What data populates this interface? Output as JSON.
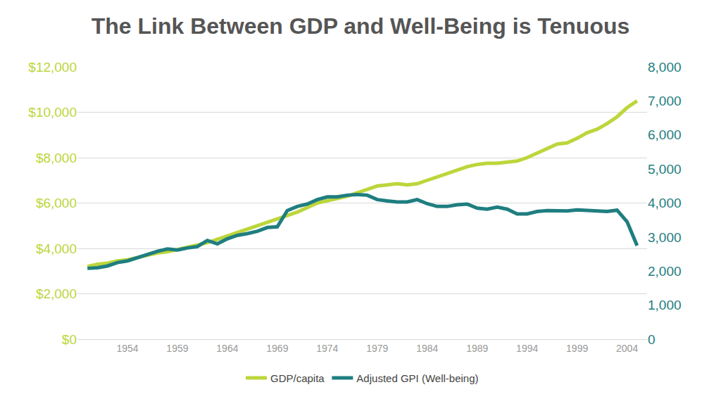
{
  "chart_data": {
    "type": "line",
    "title": "The Link Between GDP and Well-Being is Tenuous",
    "x": [
      1950,
      1951,
      1952,
      1953,
      1954,
      1955,
      1956,
      1957,
      1958,
      1959,
      1960,
      1961,
      1962,
      1963,
      1964,
      1965,
      1966,
      1967,
      1968,
      1969,
      1970,
      1971,
      1972,
      1973,
      1974,
      1975,
      1976,
      1977,
      1978,
      1979,
      1980,
      1981,
      1982,
      1983,
      1984,
      1985,
      1986,
      1987,
      1988,
      1989,
      1990,
      1991,
      1992,
      1993,
      1994,
      1995,
      1996,
      1997,
      1998,
      1999,
      2000,
      2001,
      2002,
      2003,
      2004,
      2005
    ],
    "series": [
      {
        "name": "GDP/capita",
        "color": "#bcd63b",
        "values": [
          3200,
          3300,
          3350,
          3450,
          3500,
          3600,
          3700,
          3800,
          3850,
          3950,
          4050,
          4150,
          4250,
          4400,
          4550,
          4700,
          4850,
          5000,
          5150,
          5300,
          5450,
          5600,
          5800,
          6000,
          6100,
          6200,
          6300,
          6450,
          6600,
          6750,
          6800,
          6850,
          6800,
          6850,
          7000,
          7150,
          7300,
          7450,
          7600,
          7700,
          7750,
          7750,
          7800,
          7850,
          8000,
          8200,
          8400,
          8600,
          8650,
          8850,
          9100,
          9250,
          9500,
          9800,
          10200,
          10500
        ]
      },
      {
        "name": "Adjusted GPI (Well-being)",
        "color": "#1f7e80",
        "axis": "y2",
        "values": [
          2080,
          2100,
          2150,
          2250,
          2300,
          2400,
          2500,
          2580,
          2650,
          2620,
          2680,
          2720,
          2900,
          2800,
          2950,
          3050,
          3100,
          3170,
          3280,
          3300,
          3780,
          3900,
          3970,
          4100,
          4180,
          4180,
          4230,
          4250,
          4230,
          4100,
          4060,
          4030,
          4030,
          4100,
          3980,
          3900,
          3900,
          3950,
          3970,
          3850,
          3820,
          3880,
          3820,
          3680,
          3680,
          3750,
          3780,
          3770,
          3770,
          3800,
          3780,
          3760,
          3750,
          3790,
          3450,
          2750
        ]
      }
    ],
    "xlim": [
      1949,
      2006
    ],
    "xticks": [
      1954,
      1959,
      1964,
      1969,
      1974,
      1979,
      1984,
      1989,
      1994,
      1999,
      2004
    ],
    "ylim": [
      0,
      12000
    ],
    "yticks": [
      {
        "value": 0,
        "label": "$0"
      },
      {
        "value": 2000,
        "label": "$2,000"
      },
      {
        "value": 4000,
        "label": "$4,000"
      },
      {
        "value": 6000,
        "label": "$6,000"
      },
      {
        "value": 8000,
        "label": "$8,000"
      },
      {
        "value": 10000,
        "label": "$10,000"
      },
      {
        "value": 12000,
        "label": "$12,000"
      }
    ],
    "y2lim": [
      0,
      8000
    ],
    "y2ticks": [
      0,
      {
        "value": 1000,
        "label": "1,000"
      },
      {
        "value": 2000,
        "label": "2,000"
      },
      {
        "value": 3000,
        "label": "3,000"
      },
      {
        "value": 4000,
        "label": "4,000"
      },
      {
        "value": 5000,
        "label": "5,000"
      },
      {
        "value": 6000,
        "label": "6,000"
      },
      {
        "value": 7000,
        "label": "7,000"
      },
      {
        "value": 8000,
        "label": "8,000"
      }
    ],
    "grid": true,
    "legend": "bottom"
  }
}
